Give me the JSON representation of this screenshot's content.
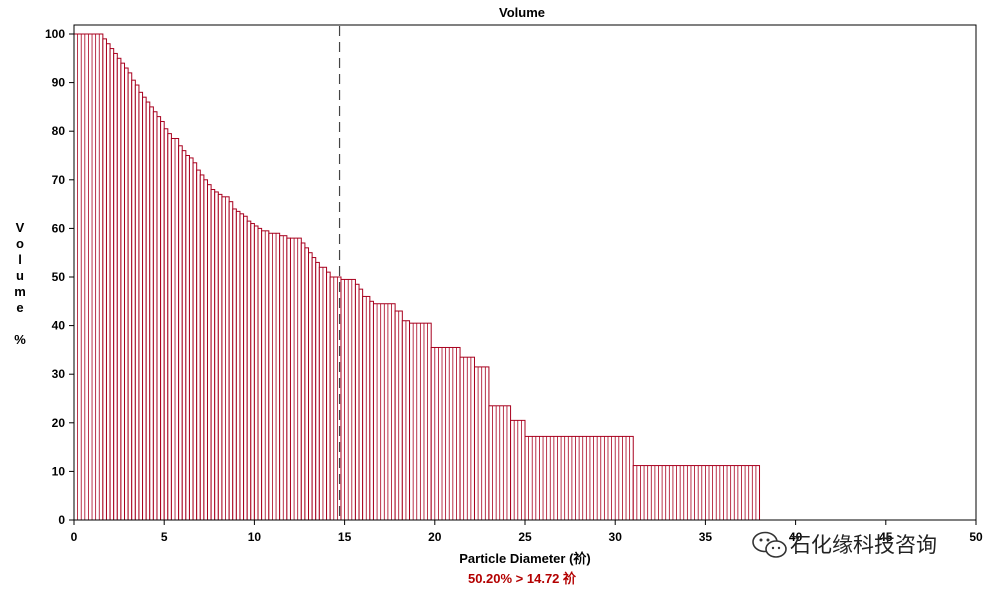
{
  "chart_data": {
    "type": "bar",
    "title": "Volume",
    "xlabel": "Particle Diameter (祄)",
    "ylabel_chars": [
      "V",
      "o",
      "l",
      "u",
      "m",
      "e",
      "",
      "%"
    ],
    "xlim": [
      0,
      50
    ],
    "ylim": [
      0,
      100
    ],
    "x_ticks": [
      0,
      5,
      10,
      15,
      20,
      25,
      30,
      35,
      40,
      45,
      50
    ],
    "y_ticks": [
      0,
      10,
      20,
      30,
      40,
      50,
      60,
      70,
      80,
      90,
      100
    ],
    "x_tick_labels": [
      "0",
      "5",
      "10",
      "15",
      "20",
      "25",
      "30",
      "35",
      "40",
      "45",
      "50"
    ],
    "y_tick_labels": [
      "0",
      "10",
      "20",
      "30",
      "40",
      "50",
      "60",
      "70",
      "80",
      "90",
      "100"
    ],
    "series": [
      {
        "bins": [
          [
            0.0,
            1.6,
            100
          ],
          [
            1.6,
            1.8,
            99
          ],
          [
            1.8,
            2.0,
            98
          ],
          [
            2.0,
            2.2,
            97
          ],
          [
            2.2,
            2.4,
            96
          ],
          [
            2.4,
            2.6,
            95
          ],
          [
            2.6,
            2.8,
            94
          ],
          [
            2.8,
            3.0,
            93
          ],
          [
            3.0,
            3.2,
            92
          ],
          [
            3.2,
            3.4,
            90.5
          ],
          [
            3.4,
            3.6,
            89.5
          ],
          [
            3.6,
            3.8,
            88
          ],
          [
            3.8,
            4.0,
            87
          ],
          [
            4.0,
            4.2,
            86
          ],
          [
            4.2,
            4.4,
            85
          ],
          [
            4.4,
            4.6,
            84
          ],
          [
            4.6,
            4.8,
            83
          ],
          [
            4.8,
            5.0,
            82
          ],
          [
            5.0,
            5.2,
            80.5
          ],
          [
            5.2,
            5.4,
            79.5
          ],
          [
            5.4,
            5.8,
            78.5
          ],
          [
            5.8,
            6.0,
            77
          ],
          [
            6.0,
            6.2,
            76
          ],
          [
            6.2,
            6.4,
            75
          ],
          [
            6.4,
            6.6,
            74.5
          ],
          [
            6.6,
            6.8,
            73.5
          ],
          [
            6.8,
            7.0,
            72
          ],
          [
            7.0,
            7.2,
            71
          ],
          [
            7.2,
            7.4,
            70
          ],
          [
            7.4,
            7.6,
            69
          ],
          [
            7.6,
            7.8,
            68
          ],
          [
            7.8,
            8.0,
            67.5
          ],
          [
            8.0,
            8.2,
            67
          ],
          [
            8.2,
            8.6,
            66.5
          ],
          [
            8.6,
            8.8,
            65.5
          ],
          [
            8.8,
            9.0,
            64
          ],
          [
            9.0,
            9.2,
            63.5
          ],
          [
            9.2,
            9.4,
            63
          ],
          [
            9.4,
            9.6,
            62.5
          ],
          [
            9.6,
            9.8,
            61.5
          ],
          [
            9.8,
            10.0,
            61
          ],
          [
            10.0,
            10.2,
            60.5
          ],
          [
            10.2,
            10.4,
            60
          ],
          [
            10.4,
            10.8,
            59.5
          ],
          [
            10.8,
            11.4,
            59
          ],
          [
            11.4,
            11.8,
            58.5
          ],
          [
            11.8,
            12.0,
            58
          ],
          [
            12.0,
            12.6,
            58
          ],
          [
            12.6,
            12.8,
            57
          ],
          [
            12.8,
            13.0,
            56
          ],
          [
            13.0,
            13.2,
            55
          ],
          [
            13.2,
            13.4,
            54
          ],
          [
            13.4,
            13.6,
            53
          ],
          [
            13.6,
            14.0,
            52
          ],
          [
            14.0,
            14.2,
            51
          ],
          [
            14.2,
            14.8,
            50
          ],
          [
            14.8,
            15.6,
            49.5
          ],
          [
            15.6,
            15.8,
            48.5
          ],
          [
            15.8,
            16.0,
            47.5
          ],
          [
            16.0,
            16.4,
            46
          ],
          [
            16.4,
            16.6,
            45
          ],
          [
            16.6,
            17.8,
            44.5
          ],
          [
            17.8,
            18.2,
            43
          ],
          [
            18.2,
            18.6,
            41
          ],
          [
            18.6,
            19.8,
            40.5
          ],
          [
            19.8,
            21.4,
            35.5
          ],
          [
            21.4,
            22.2,
            33.5
          ],
          [
            22.2,
            23.0,
            31.5
          ],
          [
            23.0,
            24.2,
            23.5
          ],
          [
            24.2,
            25.0,
            20.5
          ],
          [
            25.0,
            31.0,
            17.2
          ],
          [
            31.0,
            38.0,
            11.2
          ]
        ]
      }
    ],
    "marker_x": 14.72,
    "readout": "50.20% > 14.72 祄"
  },
  "watermark": {
    "text": "石化缘科技咨询",
    "icon": "wechat-icon"
  },
  "colors": {
    "bar_stroke": "#a8001e",
    "bar_fill": "#ffffff",
    "marker": "#444444",
    "readout": "#b30000",
    "axis": "#000000"
  }
}
